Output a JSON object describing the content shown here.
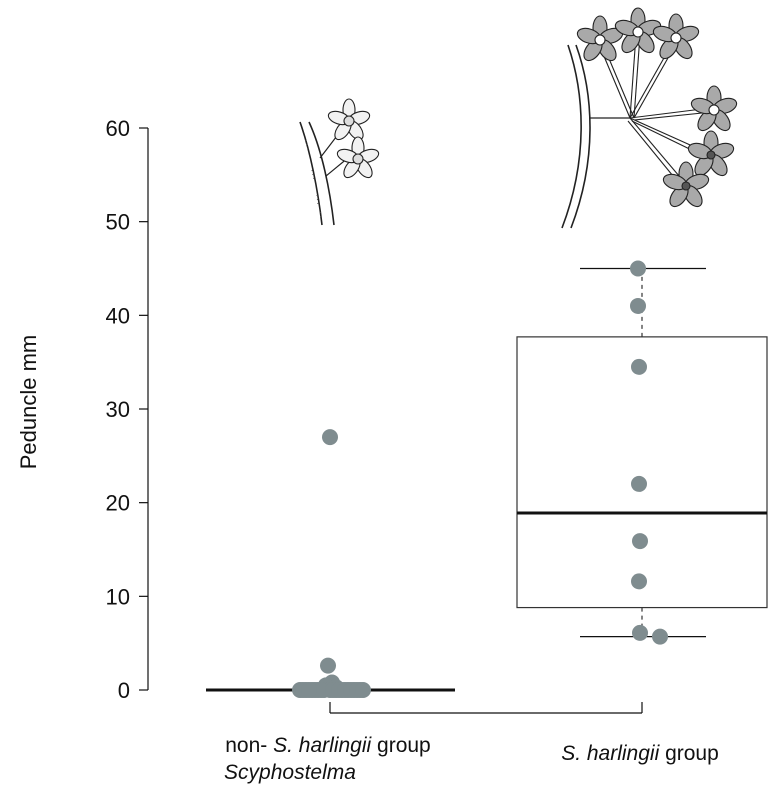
{
  "chart_data": {
    "type": "box",
    "ylabel": "Peduncle mm",
    "ylim": [
      0,
      60
    ],
    "yticks": [
      0,
      10,
      20,
      30,
      40,
      50,
      60
    ],
    "groups": [
      {
        "label_line1_prefix": "non- ",
        "label_line1_italic": "S. harlingii",
        "label_line1_suffix": " group",
        "label_line2_italic": "Scyphostelma",
        "box": {
          "min": 0,
          "q1": 0,
          "median": 0,
          "q3": 0,
          "max": 0
        },
        "points": [
          27,
          2.6,
          0.8,
          0.5,
          0.3,
          0,
          0,
          0,
          0,
          0,
          0,
          0,
          0,
          0,
          0,
          0,
          0,
          0,
          0,
          0,
          0,
          0,
          0,
          0,
          0,
          0
        ]
      },
      {
        "label_line1_prefix": "",
        "label_line1_italic": "S. harlingii",
        "label_line1_suffix": " group",
        "label_line2_italic": "",
        "box": {
          "min": 5.7,
          "q1": 8.8,
          "median": 18.9,
          "q3": 37.7,
          "max": 45
        },
        "points": [
          45,
          41,
          34.5,
          22,
          15.9,
          11.6,
          6.1,
          5.7
        ]
      }
    ],
    "point_color": "#7f8c8f"
  }
}
